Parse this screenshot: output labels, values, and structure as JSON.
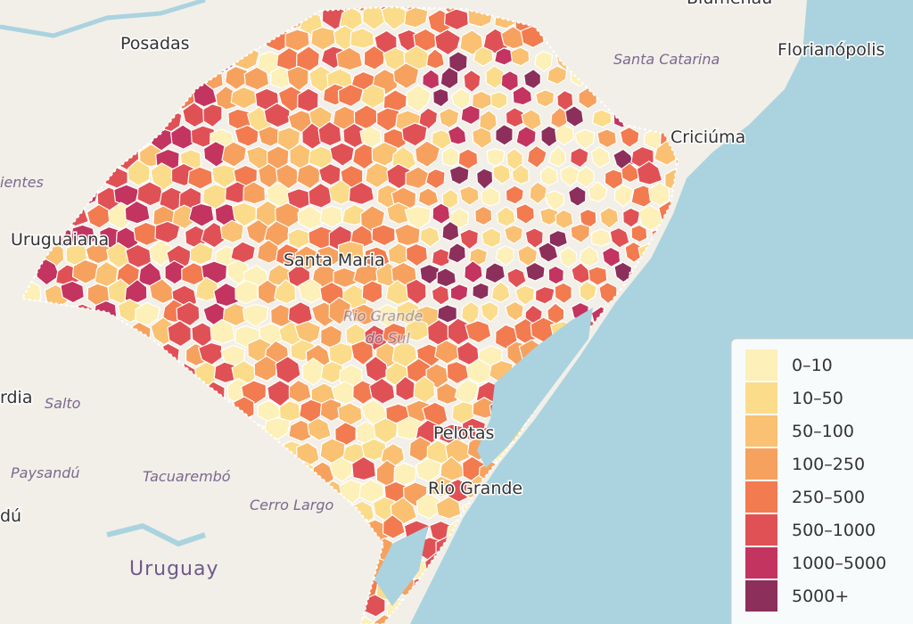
{
  "map": {
    "places": [
      {
        "label": "Posadas"
      },
      {
        "label": "Florianópolis"
      },
      {
        "label": "Santa Catarina"
      },
      {
        "label": "Criciúma"
      },
      {
        "label": "ientes"
      },
      {
        "label": "Uruguaiana"
      },
      {
        "label": "Santa Maria"
      },
      {
        "label": "Rio Grande"
      },
      {
        "label": "do Sul"
      },
      {
        "label": "Pelotas"
      },
      {
        "label": "Rio Grande"
      },
      {
        "label": "rdia"
      },
      {
        "label": "Salto"
      },
      {
        "label": "Paysandú"
      },
      {
        "label": "Tacuarembó"
      },
      {
        "label": "Cerro Largo"
      },
      {
        "label": "dú"
      },
      {
        "label": "Uruguay"
      },
      {
        "label": "Blumenau"
      }
    ],
    "legend": {
      "items": [
        {
          "label": "0–10",
          "color": "#fdf0b8"
        },
        {
          "label": "10–50",
          "color": "#fbdc8a"
        },
        {
          "label": "50–100",
          "color": "#f9c171"
        },
        {
          "label": "100–250",
          "color": "#f7a15f"
        },
        {
          "label": "250–500",
          "color": "#f27b50"
        },
        {
          "label": "500–1000",
          "color": "#e05155"
        },
        {
          "label": "1000–5000",
          "color": "#c33460"
        },
        {
          "label": "5000+",
          "color": "#8c2f5b"
        }
      ]
    }
  }
}
